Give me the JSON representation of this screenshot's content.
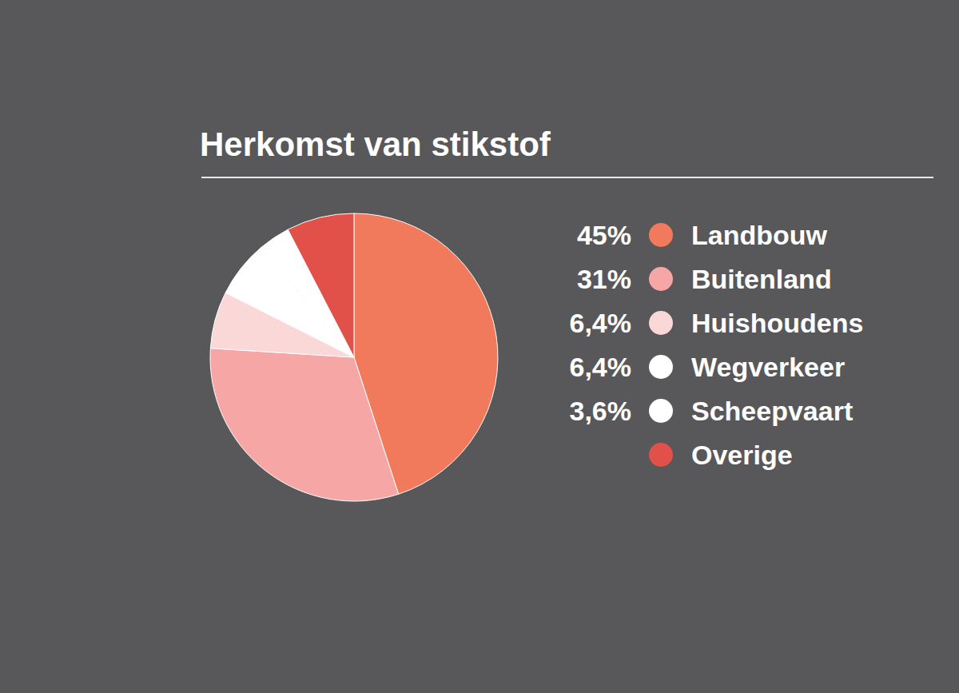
{
  "chart_data": {
    "type": "pie",
    "title": "Herkomst van stikstof",
    "categories": [
      "Landbouw",
      "Buitenland",
      "Huishoudens",
      "Wegverkeer",
      "Scheepvaart",
      "Overige"
    ],
    "values": [
      45,
      31,
      6.4,
      6.4,
      3.6,
      7.6
    ],
    "value_labels": [
      "45%",
      "31%",
      "6,4%",
      "6,4%",
      "3,6%",
      null
    ],
    "colors": [
      "#f27a5c",
      "#f6a7a5",
      "#fad8d8",
      "#ffffff",
      "#ffffff",
      "#e2504a"
    ],
    "legend": "right"
  }
}
